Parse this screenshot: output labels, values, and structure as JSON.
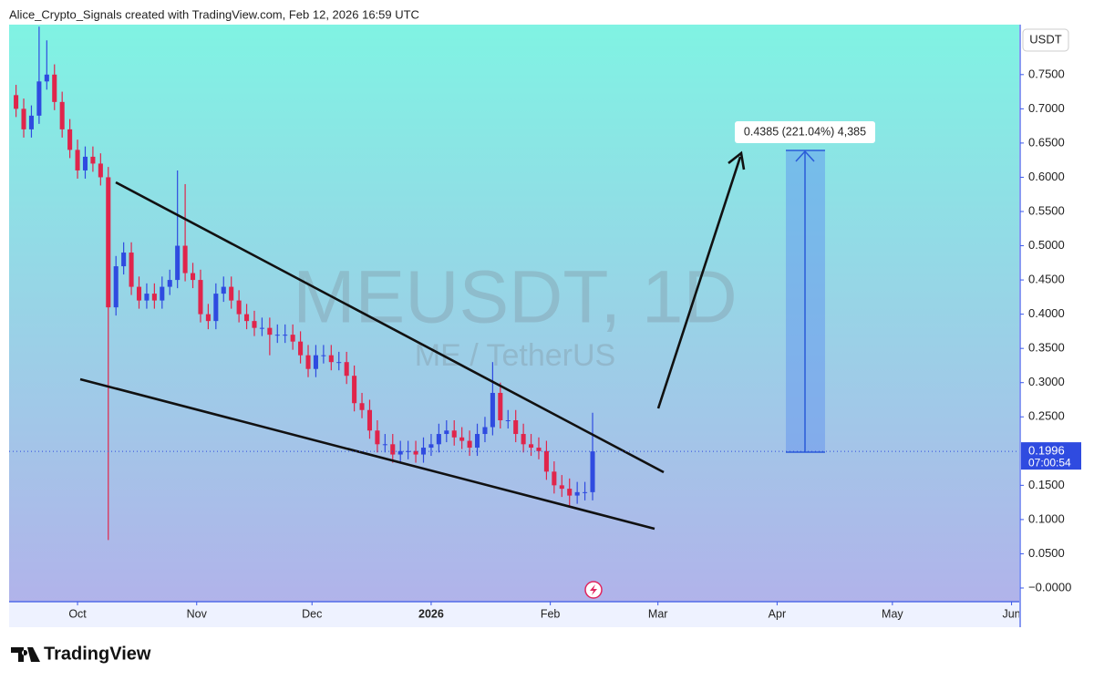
{
  "header": "Alice_Crypto_Signals created with TradingView.com, Feb 12, 2026 16:59 UTC",
  "footer": "TradingView",
  "chart_data": {
    "type": "candlestick",
    "watermark": "MEUSDT, 1D",
    "watermark_subtitle": "ME / TetherUS",
    "currency": "USDT",
    "up_color": "#2f4be0",
    "down_color": "#e0254b",
    "xlim": [
      -17.8,
      245
    ],
    "xticks": [
      {
        "value": 0,
        "label": "Oct"
      },
      {
        "value": 31,
        "label": "Nov"
      },
      {
        "value": 61,
        "label": "Dec"
      },
      {
        "value": 92,
        "label": "2026"
      },
      {
        "value": 123,
        "label": "Feb"
      },
      {
        "value": 151,
        "label": "Mar"
      },
      {
        "value": 182,
        "label": "Apr"
      },
      {
        "value": 212,
        "label": "May"
      },
      {
        "value": 243,
        "label": "Jun"
      }
    ],
    "ylim": [
      -0.02,
      0.823
    ],
    "yticks": [
      {
        "value": 0.75,
        "label": "0.7500"
      },
      {
        "value": 0.7,
        "label": "0.7000"
      },
      {
        "value": 0.65,
        "label": "0.6500"
      },
      {
        "value": 0.6,
        "label": "0.6000"
      },
      {
        "value": 0.55,
        "label": "0.5500"
      },
      {
        "value": 0.5,
        "label": "0.5000"
      },
      {
        "value": 0.45,
        "label": "0.4500"
      },
      {
        "value": 0.4,
        "label": "0.4000"
      },
      {
        "value": 0.35,
        "label": "0.3500"
      },
      {
        "value": 0.3,
        "label": "0.3000"
      },
      {
        "value": 0.25,
        "label": "0.2500"
      },
      {
        "value": 0.15,
        "label": "0.1500"
      },
      {
        "value": 0.1,
        "label": "0.1000"
      },
      {
        "value": 0.05,
        "label": "0.0500"
      },
      {
        "value": 0,
        "label": "−0.0000"
      }
    ],
    "last_price": 0.1996,
    "countdown": "07:00:54",
    "measure_label": "0.4385 (221.04%) 4,385",
    "x": [
      -16,
      -14,
      -12,
      -10,
      -8,
      -6,
      -4,
      -2,
      0,
      2,
      4,
      6,
      8,
      10,
      12,
      14,
      16,
      18,
      20,
      22,
      24,
      26,
      28,
      30,
      32,
      34,
      36,
      38,
      40,
      42,
      44,
      46,
      48,
      50,
      52,
      54,
      56,
      58,
      60,
      62,
      64,
      66,
      68,
      70,
      72,
      74,
      76,
      78,
      80,
      82,
      84,
      86,
      88,
      90,
      92,
      94,
      96,
      98,
      100,
      102,
      104,
      106,
      108,
      110,
      112,
      114,
      116,
      118,
      120,
      122,
      124,
      126,
      128,
      130,
      132,
      134
    ],
    "open": [
      0.72,
      0.7,
      0.67,
      0.69,
      0.74,
      0.75,
      0.71,
      0.67,
      0.64,
      0.61,
      0.63,
      0.62,
      0.6,
      0.41,
      0.47,
      0.49,
      0.44,
      0.42,
      0.43,
      0.42,
      0.44,
      0.45,
      0.5,
      0.46,
      0.45,
      0.4,
      0.39,
      0.43,
      0.44,
      0.42,
      0.4,
      0.39,
      0.38,
      0.38,
      0.37,
      0.37,
      0.37,
      0.36,
      0.34,
      0.32,
      0.34,
      0.34,
      0.33,
      0.33,
      0.31,
      0.27,
      0.26,
      0.23,
      0.21,
      0.21,
      0.195,
      0.2,
      0.2,
      0.195,
      0.205,
      0.21,
      0.225,
      0.23,
      0.22,
      0.215,
      0.205,
      0.225,
      0.235,
      0.285,
      0.245,
      0.245,
      0.225,
      0.21,
      0.205,
      0.2,
      0.17,
      0.15,
      0.145,
      0.135,
      0.14,
      0.14
    ],
    "high": [
      0.735,
      0.715,
      0.705,
      0.82,
      0.8,
      0.765,
      0.725,
      0.685,
      0.655,
      0.645,
      0.645,
      0.635,
      0.615,
      0.485,
      0.505,
      0.505,
      0.455,
      0.445,
      0.445,
      0.455,
      0.465,
      0.61,
      0.59,
      0.475,
      0.465,
      0.415,
      0.445,
      0.455,
      0.455,
      0.435,
      0.415,
      0.405,
      0.395,
      0.395,
      0.385,
      0.385,
      0.385,
      0.375,
      0.355,
      0.355,
      0.355,
      0.355,
      0.345,
      0.345,
      0.325,
      0.285,
      0.275,
      0.245,
      0.225,
      0.225,
      0.215,
      0.215,
      0.215,
      0.22,
      0.225,
      0.24,
      0.245,
      0.245,
      0.235,
      0.23,
      0.24,
      0.25,
      0.33,
      0.3,
      0.26,
      0.26,
      0.24,
      0.225,
      0.22,
      0.215,
      0.185,
      0.165,
      0.16,
      0.155,
      0.155,
      0.256
    ],
    "low": [
      0.688,
      0.658,
      0.658,
      0.678,
      0.728,
      0.698,
      0.658,
      0.628,
      0.598,
      0.598,
      0.608,
      0.588,
      0.07,
      0.398,
      0.458,
      0.428,
      0.408,
      0.408,
      0.408,
      0.408,
      0.428,
      0.438,
      0.448,
      0.438,
      0.388,
      0.378,
      0.378,
      0.418,
      0.408,
      0.388,
      0.378,
      0.368,
      0.368,
      0.34,
      0.358,
      0.358,
      0.348,
      0.328,
      0.308,
      0.308,
      0.328,
      0.318,
      0.318,
      0.298,
      0.258,
      0.248,
      0.218,
      0.198,
      0.198,
      0.183,
      0.183,
      0.188,
      0.183,
      0.183,
      0.193,
      0.198,
      0.213,
      0.208,
      0.203,
      0.193,
      0.193,
      0.213,
      0.223,
      0.233,
      0.233,
      0.213,
      0.198,
      0.193,
      0.188,
      0.158,
      0.138,
      0.133,
      0.12,
      0.123,
      0.128,
      0.128
    ],
    "close": [
      0.7,
      0.67,
      0.69,
      0.74,
      0.75,
      0.71,
      0.67,
      0.64,
      0.61,
      0.63,
      0.62,
      0.6,
      0.41,
      0.47,
      0.49,
      0.44,
      0.42,
      0.43,
      0.42,
      0.44,
      0.45,
      0.5,
      0.46,
      0.45,
      0.4,
      0.39,
      0.43,
      0.44,
      0.42,
      0.4,
      0.39,
      0.38,
      0.38,
      0.37,
      0.37,
      0.37,
      0.36,
      0.34,
      0.32,
      0.34,
      0.34,
      0.33,
      0.33,
      0.31,
      0.27,
      0.26,
      0.23,
      0.21,
      0.21,
      0.195,
      0.2,
      0.2,
      0.195,
      0.205,
      0.21,
      0.225,
      0.23,
      0.22,
      0.215,
      0.205,
      0.225,
      0.235,
      0.285,
      0.245,
      0.245,
      0.225,
      0.21,
      0.205,
      0.2,
      0.17,
      0.15,
      0.145,
      0.135,
      0.14,
      0.14,
      0.1996
    ]
  }
}
